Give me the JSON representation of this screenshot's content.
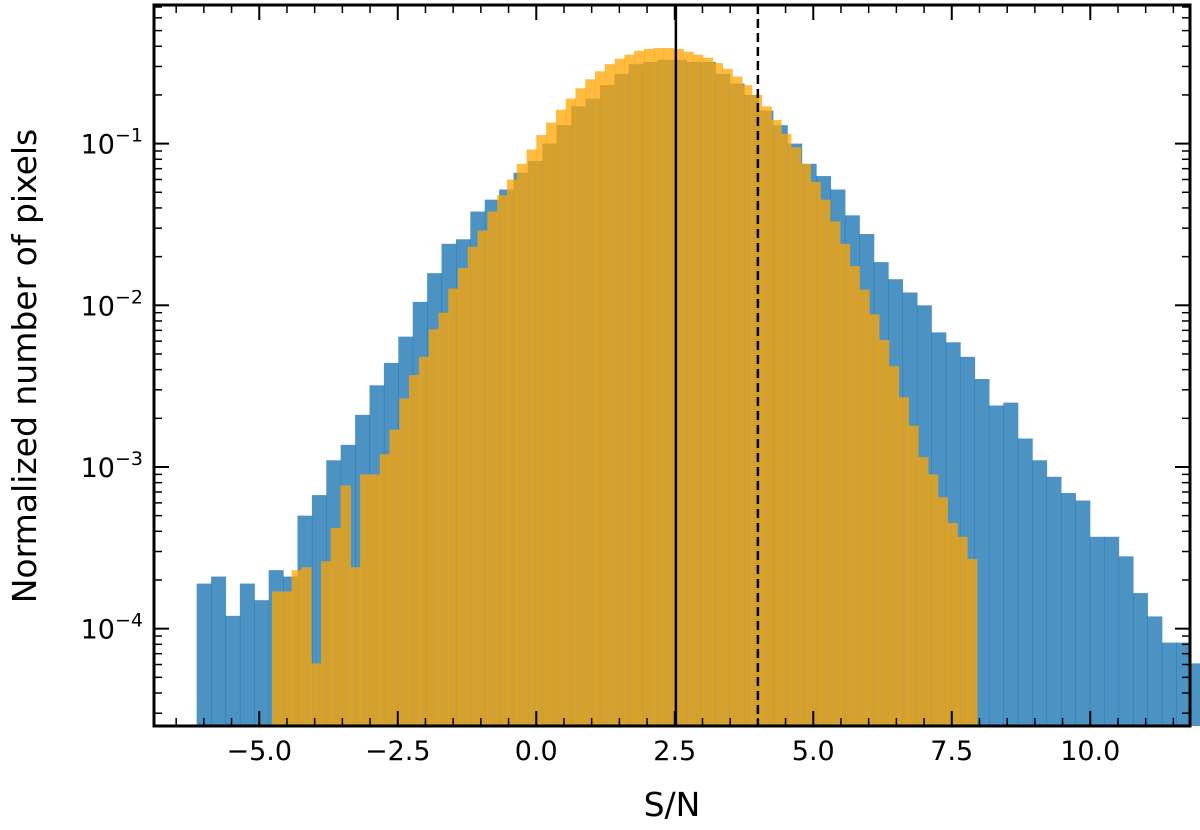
{
  "chart_data": {
    "type": "bar",
    "subtype": "overlaid-histogram",
    "xlabel": "S/N",
    "ylabel": "Normalized number of pixels",
    "xlim": [
      -6.9,
      11.8
    ],
    "ylim": [
      2.5e-05,
      0.72
    ],
    "yscale": "log",
    "grid": false,
    "legend": "none",
    "xticks": [
      -5.0,
      -2.5,
      0.0,
      2.5,
      5.0,
      7.5,
      10.0
    ],
    "xtick_labels": [
      "−5.0",
      "−2.5",
      "0.0",
      "2.5",
      "5.0",
      "7.5",
      "10.0"
    ],
    "yticks": [
      0.0001,
      0.001,
      0.01,
      0.1
    ],
    "ytick_labels": [
      {
        "base": "10",
        "exp": "−4"
      },
      {
        "base": "10",
        "exp": "−3"
      },
      {
        "base": "10",
        "exp": "−2"
      },
      {
        "base": "10",
        "exp": "−1"
      }
    ],
    "vlines": [
      {
        "x": 2.52,
        "style": "solid",
        "color": "#000000"
      },
      {
        "x": 4.0,
        "style": "dashed",
        "color": "#000000"
      }
    ],
    "series": [
      {
        "color": "#1f77b4",
        "opacity": 0.8,
        "bin_edges": [
          -6.13,
          5.08
        ],
        "bin_width": 0.26,
        "values": [
          0.00019,
          0.00021,
          0.00012,
          0.00019,
          0.00015,
          0.00023,
          0.00021,
          0.0005,
          0.00067,
          0.0011,
          0.00137,
          0.0021,
          0.0032,
          0.0044,
          0.0064,
          0.0105,
          0.0158,
          0.024,
          0.0256,
          0.038,
          0.045,
          0.052,
          0.066,
          0.078,
          0.1,
          0.13,
          0.17,
          0.19,
          0.23,
          0.27,
          0.31,
          0.32,
          0.33,
          0.33,
          0.32,
          0.32,
          0.27,
          0.235,
          0.2,
          0.16,
          0.13,
          0.1,
          0.075,
          0.063,
          0.052,
          0.036,
          0.0276,
          0.0185,
          0.0145,
          0.012,
          0.01,
          0.0068,
          0.0059,
          0.0048,
          0.0035,
          0.0024,
          0.0025,
          0.0015,
          0.0011,
          0.00087,
          0.00069,
          0.00062,
          0.00037,
          0.00037,
          0.00028,
          0.000166,
          0.000119,
          8.2e-05,
          8.2e-05,
          6.1e-05,
          3.4e-05,
          4.6e-05,
          8.2e-05,
          7.4e-05,
          9.5e-05,
          2.3e-05,
          8.2e-05,
          6.1e-05,
          6.1e-05,
          3.4e-05,
          6.1e-05,
          2.3e-05,
          6.1e-05,
          8.2e-05,
          8.2e-05,
          2.3e-05,
          2.3e-05,
          9.5e-05
        ]
      },
      {
        "color": "#ffa500",
        "opacity": 0.75,
        "bin_edges": [
          -4.77,
          4.42
        ],
        "bin_width": 0.1767,
        "values": [
          0.00017,
          0.00017,
          0.00023,
          0.00024,
          6.1e-05,
          0.000261,
          0.00042,
          0.00077,
          0.00024,
          0.0009,
          0.0009,
          0.0012,
          0.0017,
          0.00265,
          0.0037,
          0.0048,
          0.0071,
          0.009,
          0.0127,
          0.017,
          0.023,
          0.029,
          0.038,
          0.048,
          0.06,
          0.075,
          0.092,
          0.113,
          0.135,
          0.162,
          0.19,
          0.22,
          0.25,
          0.28,
          0.31,
          0.335,
          0.355,
          0.375,
          0.385,
          0.39,
          0.39,
          0.385,
          0.37,
          0.355,
          0.34,
          0.315,
          0.29,
          0.26,
          0.23,
          0.2,
          0.17,
          0.14,
          0.115,
          0.095,
          0.075,
          0.058,
          0.045,
          0.033,
          0.024,
          0.0175,
          0.0125,
          0.0088,
          0.0061,
          0.0042,
          0.0027,
          0.0018,
          0.00115,
          0.0009,
          0.00065,
          0.00045,
          0.00037,
          0.00027
        ]
      }
    ]
  }
}
